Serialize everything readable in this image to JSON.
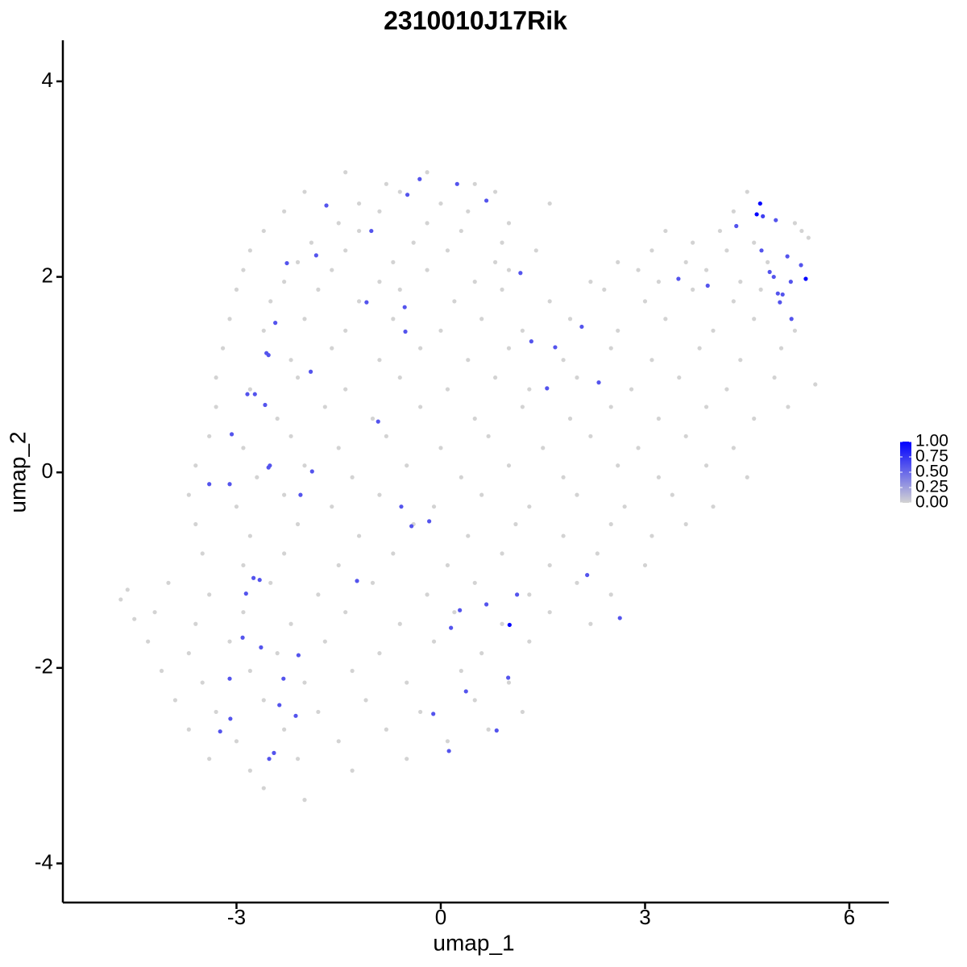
{
  "chart_data": {
    "type": "scatter",
    "title": "2310010J17Rik",
    "x_label": "umap_1",
    "y_label": "umap_2",
    "xlim": [
      -5.55,
      6.58
    ],
    "ylim": [
      -4.4,
      4.42
    ],
    "xticks": [
      -3,
      0,
      3,
      6
    ],
    "yticks": [
      -4,
      -2,
      0,
      2,
      4
    ],
    "low_color": "#d3d3d3",
    "high_color": "#0000ff",
    "colorbar": {
      "lim": [
        0,
        1
      ],
      "ticks": [
        {
          "value": 0,
          "label": "0.00"
        },
        {
          "value": 0.25,
          "label": "0.25"
        },
        {
          "value": 0.5,
          "label": "0.50"
        },
        {
          "value": 0.75,
          "label": "0.75"
        },
        {
          "value": 1,
          "label": "1.00"
        }
      ]
    },
    "x": [
      -1.4,
      -0.8,
      -0.2,
      0.5,
      -2.0,
      -1.2,
      -0.6,
      0.0,
      0.8,
      1.6,
      4.5,
      -2.3,
      -1.5,
      -0.9,
      -0.2,
      0.4,
      1.0,
      4.3,
      5.2,
      -2.6,
      -1.9,
      -1.2,
      -0.4,
      0.3,
      0.9,
      3.3,
      3.7,
      4.1,
      4.6,
      5.3,
      -2.8,
      -2.1,
      -1.4,
      -0.7,
      0.1,
      0.8,
      1.4,
      2.6,
      3.1,
      3.6,
      4.2,
      4.8,
      -2.9,
      -2.3,
      -1.6,
      -0.9,
      -0.2,
      0.5,
      1.0,
      2.2,
      2.9,
      3.2,
      3.9,
      4.4,
      -3.0,
      -2.5,
      -1.8,
      -1.2,
      -0.6,
      0.2,
      0.9,
      1.6,
      2.4,
      3.0,
      3.7,
      4.3,
      4.7,
      -3.1,
      -2.6,
      -2.0,
      -1.4,
      -0.7,
      0.0,
      0.6,
      1.2,
      1.9,
      2.6,
      3.3,
      4.0,
      4.6,
      5.2,
      -3.2,
      -2.2,
      -1.6,
      -0.9,
      -0.3,
      0.4,
      1.0,
      1.8,
      2.5,
      3.1,
      3.8,
      4.4,
      5.0,
      -3.3,
      -2.8,
      -2.1,
      -1.4,
      -0.6,
      0.1,
      0.8,
      1.3,
      2.0,
      2.8,
      3.5,
      4.2,
      4.9,
      -3.3,
      -2.4,
      -1.7,
      -1.0,
      -0.3,
      0.5,
      1.2,
      1.9,
      2.5,
      3.2,
      3.9,
      4.6,
      5.1,
      -3.4,
      -2.9,
      -2.2,
      -1.5,
      -0.8,
      0.0,
      0.7,
      1.5,
      2.2,
      2.9,
      3.6,
      4.3,
      -3.6,
      -2.7,
      -2.0,
      -1.3,
      -0.5,
      0.3,
      1.0,
      1.8,
      2.6,
      3.2,
      3.9,
      4.5,
      -3.7,
      -3.0,
      -2.3,
      -1.6,
      -0.9,
      -0.1,
      0.6,
      1.3,
      2.0,
      2.7,
      3.4,
      4.0,
      -3.6,
      -2.8,
      -2.1,
      -1.2,
      -0.4,
      0.4,
      1.1,
      1.8,
      2.5,
      3.1,
      3.6,
      -3.5,
      -2.9,
      -2.3,
      -1.5,
      -0.7,
      0.1,
      0.9,
      1.6,
      2.3,
      3.0,
      -4.0,
      -3.4,
      -2.5,
      -1.8,
      -1.0,
      -0.2,
      0.5,
      1.3,
      2.0,
      2.5,
      -4.2,
      -3.6,
      -2.9,
      -2.2,
      -1.4,
      -0.6,
      0.2,
      0.9,
      1.6,
      2.2,
      -4.3,
      -3.7,
      -3.1,
      -2.4,
      -1.7,
      -0.9,
      -0.1,
      0.6,
      1.3,
      -4.1,
      -3.5,
      -2.8,
      -2.0,
      -1.3,
      -0.5,
      0.3,
      1.0,
      -3.9,
      -3.3,
      -2.6,
      -1.8,
      -1.1,
      -0.3,
      0.5,
      1.2,
      -3.7,
      -3.0,
      -2.3,
      -1.5,
      -0.8,
      0.1,
      0.7,
      -3.4,
      -2.8,
      -2.1,
      -1.3,
      -0.5,
      -2.6,
      -2.0,
      -4.7,
      -4.6,
      -4.5,
      5.5,
      5.4,
      -0.31,
      0.24,
      -0.49,
      0.67,
      -1.68,
      -1.02,
      -1.83,
      -2.26,
      1.17,
      4.34,
      4.73,
      4.92,
      4.71,
      5.09,
      5.29,
      4.83,
      4.89,
      5.14,
      3.49,
      3.92,
      4.95,
      5.02,
      4.98,
      5.15,
      -1.09,
      -0.53,
      -2.43,
      -0.52,
      2.07,
      1.33,
      1.68,
      -2.56,
      -2.53,
      -1.91,
      2.32,
      1.56,
      -2.84,
      -2.73,
      -2.58,
      -0.92,
      -3.07,
      -2.51,
      -2.53,
      -1.89,
      -3.4,
      -3.1,
      -2.06,
      -0.58,
      -0.43,
      -0.17,
      -1.23,
      -2.75,
      -2.66,
      -2.86,
      2.15,
      1.12,
      0.67,
      0.28,
      2.63,
      0.15,
      -2.91,
      -2.64,
      -2.09,
      -3.1,
      -2.31,
      0.99,
      0.37,
      -2.37,
      -2.13,
      -3.09,
      -0.11,
      -3.24,
      0.82,
      0.12,
      -2.45,
      -2.52,
      4.69,
      4.64,
      5.36,
      1.01
    ],
    "y": [
      3.07,
      2.95,
      3.07,
      2.95,
      2.87,
      2.75,
      2.87,
      2.75,
      2.87,
      2.75,
      2.87,
      2.67,
      2.55,
      2.67,
      2.55,
      2.67,
      2.55,
      2.67,
      2.55,
      2.47,
      2.35,
      2.47,
      2.35,
      2.47,
      2.35,
      2.47,
      2.35,
      2.47,
      2.35,
      2.47,
      2.27,
      2.15,
      2.27,
      2.15,
      2.27,
      2.15,
      2.27,
      2.15,
      2.27,
      2.15,
      2.27,
      2.15,
      2.07,
      1.95,
      2.07,
      1.95,
      2.07,
      1.95,
      2.07,
      1.95,
      2.07,
      1.95,
      2.07,
      1.95,
      1.87,
      1.75,
      1.87,
      1.75,
      1.87,
      1.75,
      1.87,
      1.75,
      1.87,
      1.75,
      1.87,
      1.75,
      1.87,
      1.57,
      1.45,
      1.57,
      1.45,
      1.57,
      1.45,
      1.57,
      1.45,
      1.57,
      1.45,
      1.57,
      1.45,
      1.57,
      1.45,
      1.27,
      1.15,
      1.27,
      1.15,
      1.27,
      1.15,
      1.27,
      1.15,
      1.27,
      1.15,
      1.27,
      1.15,
      1.27,
      0.97,
      0.85,
      0.97,
      0.85,
      0.97,
      0.85,
      0.97,
      0.85,
      0.97,
      0.85,
      0.97,
      0.85,
      0.97,
      0.67,
      0.55,
      0.67,
      0.55,
      0.67,
      0.55,
      0.67,
      0.55,
      0.67,
      0.55,
      0.67,
      0.55,
      0.67,
      0.37,
      0.25,
      0.37,
      0.25,
      0.37,
      0.25,
      0.37,
      0.25,
      0.37,
      0.25,
      0.37,
      0.25,
      0.07,
      -0.05,
      0.07,
      -0.05,
      0.07,
      -0.05,
      0.07,
      -0.05,
      0.07,
      -0.05,
      0.07,
      -0.05,
      -0.23,
      -0.35,
      -0.23,
      -0.35,
      -0.23,
      -0.35,
      -0.23,
      -0.35,
      -0.23,
      -0.35,
      -0.23,
      -0.35,
      -0.53,
      -0.65,
      -0.53,
      -0.65,
      -0.53,
      -0.65,
      -0.53,
      -0.65,
      -0.53,
      -0.65,
      -0.53,
      -0.83,
      -0.95,
      -0.83,
      -0.95,
      -0.83,
      -0.95,
      -0.83,
      -0.95,
      -0.83,
      -0.95,
      -1.13,
      -1.25,
      -1.13,
      -1.25,
      -1.13,
      -1.25,
      -1.13,
      -1.25,
      -1.13,
      -1.25,
      -1.43,
      -1.55,
      -1.43,
      -1.55,
      -1.43,
      -1.55,
      -1.43,
      -1.55,
      -1.43,
      -1.55,
      -1.73,
      -1.85,
      -1.73,
      -1.85,
      -1.73,
      -1.85,
      -1.73,
      -1.85,
      -1.73,
      -2.03,
      -2.15,
      -2.03,
      -2.15,
      -2.03,
      -2.15,
      -2.03,
      -2.15,
      -2.33,
      -2.45,
      -2.33,
      -2.45,
      -2.33,
      -2.45,
      -2.33,
      -2.45,
      -2.63,
      -2.75,
      -2.63,
      -2.75,
      -2.63,
      -2.75,
      -2.63,
      -2.93,
      -3.05,
      -2.93,
      -3.05,
      -2.93,
      -3.23,
      -3.35,
      -1.3,
      -1.2,
      -1.5,
      0.9,
      2.4,
      3.0,
      2.95,
      2.84,
      2.78,
      2.73,
      2.47,
      2.22,
      2.14,
      2.04,
      2.52,
      2.62,
      2.58,
      2.27,
      2.21,
      2.12,
      2.05,
      2.0,
      1.95,
      1.98,
      1.91,
      1.83,
      1.82,
      1.74,
      1.57,
      1.74,
      1.69,
      1.53,
      1.44,
      1.49,
      1.34,
      1.28,
      1.22,
      1.2,
      1.03,
      0.92,
      0.86,
      0.8,
      0.8,
      0.69,
      0.52,
      0.39,
      0.07,
      0.05,
      0.01,
      -0.12,
      -0.12,
      -0.23,
      -0.35,
      -0.55,
      -0.5,
      -1.11,
      -1.08,
      -1.1,
      -1.24,
      -1.05,
      -1.25,
      -1.35,
      -1.41,
      -1.49,
      -1.59,
      -1.69,
      -1.79,
      -1.87,
      -2.11,
      -2.11,
      -2.1,
      -2.24,
      -2.38,
      -2.49,
      -2.52,
      -2.47,
      -2.65,
      -2.64,
      -2.85,
      -2.87,
      -2.93,
      2.75,
      2.64,
      1.98,
      -1.56
    ],
    "values": [
      0,
      0,
      0,
      0,
      0,
      0,
      0,
      0,
      0,
      0,
      0,
      0,
      0,
      0,
      0,
      0,
      0,
      0,
      0,
      0,
      0,
      0,
      0,
      0,
      0,
      0,
      0,
      0,
      0,
      0,
      0,
      0,
      0,
      0,
      0,
      0,
      0,
      0,
      0,
      0,
      0,
      0,
      0,
      0,
      0,
      0,
      0,
      0,
      0,
      0,
      0,
      0,
      0,
      0,
      0,
      0,
      0,
      0,
      0,
      0,
      0,
      0,
      0,
      0,
      0,
      0,
      0,
      0,
      0,
      0,
      0,
      0,
      0,
      0,
      0,
      0,
      0,
      0,
      0,
      0,
      0,
      0,
      0,
      0,
      0,
      0,
      0,
      0,
      0,
      0,
      0,
      0,
      0,
      0,
      0,
      0,
      0,
      0,
      0,
      0,
      0,
      0,
      0,
      0,
      0,
      0,
      0,
      0,
      0,
      0,
      0,
      0,
      0,
      0,
      0,
      0,
      0,
      0,
      0,
      0,
      0,
      0,
      0,
      0,
      0,
      0,
      0,
      0,
      0,
      0,
      0,
      0,
      0,
      0,
      0,
      0,
      0,
      0,
      0,
      0,
      0,
      0,
      0,
      0,
      0,
      0,
      0,
      0,
      0,
      0,
      0,
      0,
      0,
      0,
      0,
      0,
      0,
      0,
      0,
      0,
      0,
      0,
      0,
      0,
      0,
      0,
      0,
      0,
      0,
      0,
      0,
      0,
      0,
      0,
      0,
      0,
      0,
      0,
      0,
      0,
      0,
      0,
      0,
      0,
      0,
      0,
      0,
      0,
      0,
      0,
      0,
      0,
      0,
      0,
      0,
      0,
      0,
      0,
      0,
      0,
      0,
      0,
      0,
      0,
      0,
      0,
      0,
      0,
      0,
      0,
      0,
      0,
      0,
      0,
      0,
      0,
      0,
      0,
      0,
      0,
      0,
      0,
      0,
      0,
      0,
      0,
      0,
      0,
      0,
      0,
      0,
      0,
      0,
      0,
      0,
      0,
      0,
      0,
      0,
      0,
      0,
      0.6,
      0.6,
      0.6,
      0.6,
      0.6,
      0.6,
      0.6,
      0.6,
      0.6,
      0.6,
      0.7,
      0.6,
      0.6,
      0.6,
      0.6,
      0.6,
      0.6,
      0.6,
      0.6,
      0.6,
      0.6,
      0.6,
      0.6,
      0.6,
      0.6,
      0.6,
      0.6,
      0.6,
      0.6,
      0.6,
      0.6,
      0.6,
      0.6,
      0.6,
      0.6,
      0.6,
      0.6,
      0.6,
      0.6,
      0.6,
      0.6,
      0.6,
      0.6,
      0.6,
      0.6,
      0.6,
      0.6,
      0.6,
      0.6,
      0.6,
      0.6,
      0.6,
      0.6,
      0.6,
      0.6,
      0.6,
      0.6,
      0.6,
      0.6,
      0.6,
      0.6,
      0.6,
      0.6,
      0.6,
      0.6,
      0.6,
      0.6,
      0.6,
      0.6,
      0.6,
      0.6,
      0.6,
      0.6,
      0.6,
      0.6,
      0.6,
      1,
      1,
      1,
      1
    ]
  }
}
